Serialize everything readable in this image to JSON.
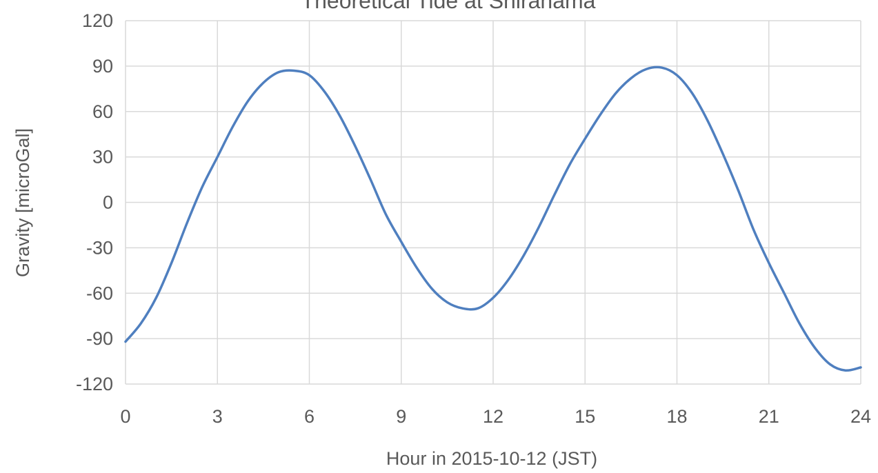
{
  "chart_data": {
    "type": "line",
    "title": "Theoretical Tide at Shirahama",
    "xlabel": "Hour in 2015-10-12 (JST)",
    "ylabel": "Gravity [microGal]",
    "xlim": [
      0,
      24
    ],
    "ylim": [
      -120,
      120
    ],
    "xticks": [
      0,
      3,
      6,
      9,
      12,
      15,
      18,
      21,
      24
    ],
    "yticks": [
      -120,
      -90,
      -60,
      -30,
      0,
      30,
      60,
      90,
      120
    ],
    "grid": true,
    "legend": "none",
    "series": [
      {
        "color": "#4f7fbf",
        "x": [
          0,
          0.5,
          1,
          1.5,
          2,
          2.5,
          3,
          3.5,
          4,
          4.5,
          5,
          5.5,
          6,
          6.5,
          7,
          7.5,
          8,
          8.5,
          9,
          9.5,
          10,
          10.5,
          11,
          11.5,
          12,
          12.5,
          13,
          13.5,
          14,
          14.5,
          15,
          15.5,
          16,
          16.5,
          17,
          17.5,
          18,
          18.5,
          19,
          19.5,
          20,
          20.5,
          21,
          21.5,
          22,
          22.5,
          23,
          23.5,
          24
        ],
        "y": [
          -92,
          -80,
          -63,
          -40,
          -14,
          10,
          30,
          50,
          67,
          79,
          86,
          87,
          84,
          73,
          57,
          37,
          15,
          -8,
          -26,
          -43,
          -57,
          -66,
          -70,
          -70,
          -63,
          -51,
          -35,
          -16,
          5,
          25,
          42,
          58,
          72,
          82,
          88,
          89,
          84,
          72,
          54,
          32,
          8,
          -18,
          -40,
          -60,
          -80,
          -96,
          -107,
          -111,
          -109
        ]
      }
    ]
  }
}
